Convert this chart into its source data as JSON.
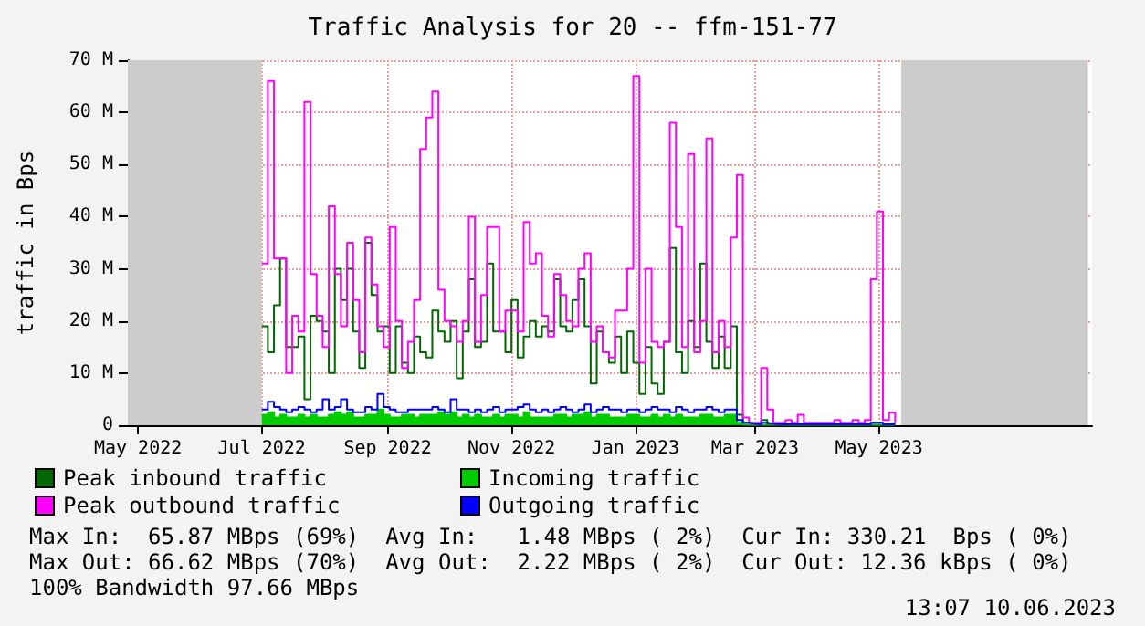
{
  "chart_data": {
    "type": "step",
    "title": "Traffic Analysis for 20 -- ffm-151-77",
    "ylabel": "traffic in Bps",
    "x": [
      "2022-07-01",
      "2022-07-04",
      "2022-07-07",
      "2022-07-10",
      "2022-07-13",
      "2022-07-16",
      "2022-07-19",
      "2022-07-22",
      "2022-07-25",
      "2022-07-28",
      "2022-07-31",
      "2022-08-03",
      "2022-08-06",
      "2022-08-09",
      "2022-08-12",
      "2022-08-15",
      "2022-08-18",
      "2022-08-21",
      "2022-08-24",
      "2022-08-27",
      "2022-08-30",
      "2022-09-02",
      "2022-09-05",
      "2022-09-08",
      "2022-09-11",
      "2022-09-14",
      "2022-09-17",
      "2022-09-20",
      "2022-09-23",
      "2022-09-26",
      "2022-09-29",
      "2022-10-02",
      "2022-10-05",
      "2022-10-08",
      "2022-10-11",
      "2022-10-14",
      "2022-10-17",
      "2022-10-20",
      "2022-10-23",
      "2022-10-26",
      "2022-10-29",
      "2022-11-01",
      "2022-11-04",
      "2022-11-07",
      "2022-11-10",
      "2022-11-13",
      "2022-11-16",
      "2022-11-19",
      "2022-11-22",
      "2022-11-25",
      "2022-11-28",
      "2022-12-01",
      "2022-12-04",
      "2022-12-07",
      "2022-12-10",
      "2022-12-13",
      "2022-12-16",
      "2022-12-19",
      "2022-12-22",
      "2022-12-25",
      "2022-12-28",
      "2022-12-31",
      "2023-01-03",
      "2023-01-06",
      "2023-01-09",
      "2023-01-12",
      "2023-01-15",
      "2023-01-18",
      "2023-01-21",
      "2023-01-24",
      "2023-01-27",
      "2023-01-30",
      "2023-02-02",
      "2023-02-05",
      "2023-02-08",
      "2023-02-11",
      "2023-02-14",
      "2023-02-17",
      "2023-02-20",
      "2023-02-23",
      "2023-02-26",
      "2023-03-01",
      "2023-03-04",
      "2023-03-07",
      "2023-03-10",
      "2023-03-13",
      "2023-03-16",
      "2023-03-19",
      "2023-03-22",
      "2023-03-25",
      "2023-03-28",
      "2023-03-31",
      "2023-04-03",
      "2023-04-06",
      "2023-04-09",
      "2023-04-12",
      "2023-04-15",
      "2023-04-18",
      "2023-04-21",
      "2023-04-24",
      "2023-04-27",
      "2023-04-30",
      "2023-05-03",
      "2023-05-06",
      "2023-05-09"
    ],
    "series": [
      {
        "name": "Peak inbound traffic",
        "color": "#006600",
        "values": [
          19,
          14,
          23,
          32,
          15,
          15,
          17,
          5,
          21,
          20,
          18,
          10,
          30,
          24,
          30,
          18,
          11,
          35,
          25,
          18,
          19,
          10,
          19,
          12,
          10,
          17,
          14,
          13,
          22,
          18,
          16,
          20,
          9,
          18,
          28,
          15,
          16,
          31,
          18,
          18,
          14,
          24,
          13,
          17,
          20,
          17,
          19,
          18,
          28,
          19,
          18,
          24,
          28,
          19,
          8,
          18,
          14,
          12,
          17,
          10,
          18,
          12,
          6,
          15,
          8,
          6,
          16,
          34,
          14,
          10,
          20,
          15,
          31,
          16,
          11,
          17,
          11,
          19,
          2,
          0.5,
          0.3,
          0.2,
          1,
          0.3,
          0.2,
          0.2,
          0.3,
          0.2,
          0.3,
          0.2,
          0.2,
          0.2,
          0.2,
          0.2,
          0.2,
          0.2,
          0.2,
          0.2,
          0.2,
          0.2,
          0.5,
          0.5,
          0.2,
          0.3,
          0.2
        ]
      },
      {
        "name": "Incoming traffic",
        "type": "area",
        "color": "#00cc00",
        "values": [
          2,
          2.5,
          1.5,
          2,
          1.5,
          1.5,
          2,
          1.5,
          2,
          1.5,
          1.5,
          2,
          2.5,
          2,
          2.5,
          1.5,
          1.5,
          2,
          2,
          3,
          2,
          1.5,
          1.5,
          2,
          2,
          1.5,
          2,
          2,
          2,
          2.5,
          2,
          2.5,
          1.5,
          2,
          1.5,
          2,
          1.5,
          1.5,
          2,
          1.5,
          2,
          2,
          1.5,
          2.5,
          1.5,
          1.5,
          1.5,
          1.5,
          2,
          2,
          1.5,
          2,
          2,
          2.5,
          1.5,
          2,
          2,
          1.5,
          1.5,
          1.5,
          2,
          2,
          1.5,
          1.5,
          2,
          1.5,
          2,
          1.5,
          2,
          1.5,
          1.5,
          1.5,
          2,
          2,
          1.5,
          1.5,
          2,
          2,
          0.5,
          0.1,
          0.1,
          0.1,
          0.1,
          0.1,
          0.1,
          0.1,
          0.1,
          0.1,
          0.1,
          0.1,
          0.1,
          0.1,
          0.1,
          0.1,
          0.1,
          0.1,
          0.1,
          0.1,
          0.1,
          0.1,
          0.1,
          0.1,
          0.1,
          0.1,
          0.1
        ]
      },
      {
        "name": "Peak outbound traffic",
        "color": "#ff00ff",
        "values": [
          31,
          66,
          32,
          32,
          10,
          21,
          18,
          62,
          29,
          21,
          15,
          42,
          29,
          19,
          35,
          24,
          14,
          36,
          27,
          19,
          15,
          38,
          20,
          11,
          16,
          24,
          53,
          59,
          64,
          26,
          20,
          19,
          16,
          20,
          40,
          16,
          25,
          38,
          38,
          18,
          22,
          22,
          18,
          39,
          31,
          33,
          21,
          17,
          29,
          25,
          20,
          19,
          30,
          33,
          16,
          19,
          14,
          13,
          22,
          22,
          30,
          67,
          12,
          30,
          16,
          15,
          16,
          58,
          38,
          15,
          52,
          14,
          20,
          55,
          14,
          20,
          15,
          36,
          48,
          1.5,
          0.5,
          0.5,
          11,
          3,
          0.5,
          0.5,
          1,
          0.5,
          2,
          0.5,
          0.5,
          0.5,
          0.5,
          0.5,
          1,
          0.5,
          0.5,
          1,
          0.5,
          1,
          28,
          41,
          1,
          2.4,
          0.5
        ]
      },
      {
        "name": "Outgoing traffic",
        "color": "#0000ff",
        "values": [
          3,
          4.5,
          3.5,
          3,
          2.5,
          3,
          3.5,
          3,
          2.5,
          3,
          5,
          3,
          3.5,
          5,
          3,
          2.5,
          2.5,
          3.5,
          3,
          6,
          3.5,
          3,
          2.5,
          2.5,
          3,
          3,
          3,
          3,
          3.5,
          3,
          2.5,
          5,
          3,
          3,
          2.5,
          3,
          2.5,
          3,
          3.5,
          2.5,
          3,
          3,
          3.5,
          4,
          3,
          2.5,
          3,
          2.5,
          3,
          3.5,
          3,
          2.5,
          3,
          4,
          2.5,
          3,
          3.5,
          3,
          3,
          2.5,
          3,
          3,
          2.5,
          3,
          3.5,
          3,
          3,
          2.5,
          3.5,
          3,
          2.5,
          3,
          3,
          3.5,
          3,
          2.5,
          3,
          3,
          1,
          0.5,
          0.3,
          0.2,
          0.5,
          0.3,
          0.2,
          0.2,
          0.2,
          0.2,
          0.2,
          0.2,
          0.2,
          0.2,
          0.2,
          0.2,
          0.2,
          0.2,
          0.2,
          0.2,
          0.2,
          0.2,
          0.5,
          0.5,
          0.2,
          0.2,
          0.2
        ]
      }
    ],
    "xlim": [
      "2022-04-26",
      "2023-08-14"
    ],
    "xticks": [
      {
        "value": "2022-05-01",
        "label": "May 2022"
      },
      {
        "value": "2022-07-01",
        "label": "Jul 2022"
      },
      {
        "value": "2022-09-01",
        "label": "Sep 2022"
      },
      {
        "value": "2022-11-01",
        "label": "Nov 2022"
      },
      {
        "value": "2023-01-01",
        "label": "Jan 2023"
      },
      {
        "value": "2023-03-01",
        "label": "Mar 2023"
      },
      {
        "value": "2023-05-01",
        "label": "May 2023"
      }
    ],
    "ylim": [
      0,
      70
    ],
    "yticks": [
      0,
      {
        "value": 10,
        "label": "10 M"
      },
      {
        "value": 20,
        "label": "20 M"
      },
      {
        "value": 30,
        "label": "30 M"
      },
      {
        "value": 40,
        "label": "40 M"
      },
      {
        "value": 50,
        "label": "50 M"
      },
      {
        "value": 60,
        "label": "60 M"
      },
      {
        "value": 70,
        "label": "70 M"
      }
    ],
    "bands": [
      {
        "axis": "x",
        "from": "2022-04-26",
        "to": "2022-07-01",
        "color": "#cccccc"
      },
      {
        "axis": "x",
        "from": "2023-05-12",
        "to": "2023-08-12",
        "color": "#cccccc"
      }
    ],
    "annotations": [
      "Max In:  65.87 MBps (69%)  Avg In:   1.48 MBps ( 2%)  Cur In: 330.21  Bps ( 0%)",
      "Max Out: 66.62 MBps (70%)  Avg Out:  2.22 MBps ( 2%)  Cur Out: 12.36 kBps ( 0%)",
      "100% Bandwidth 97.66 MBps",
      "13:07 10.06.2023"
    ],
    "grid": true,
    "legend": "bottom",
    "marker": "none",
    "line_style": "solid"
  }
}
